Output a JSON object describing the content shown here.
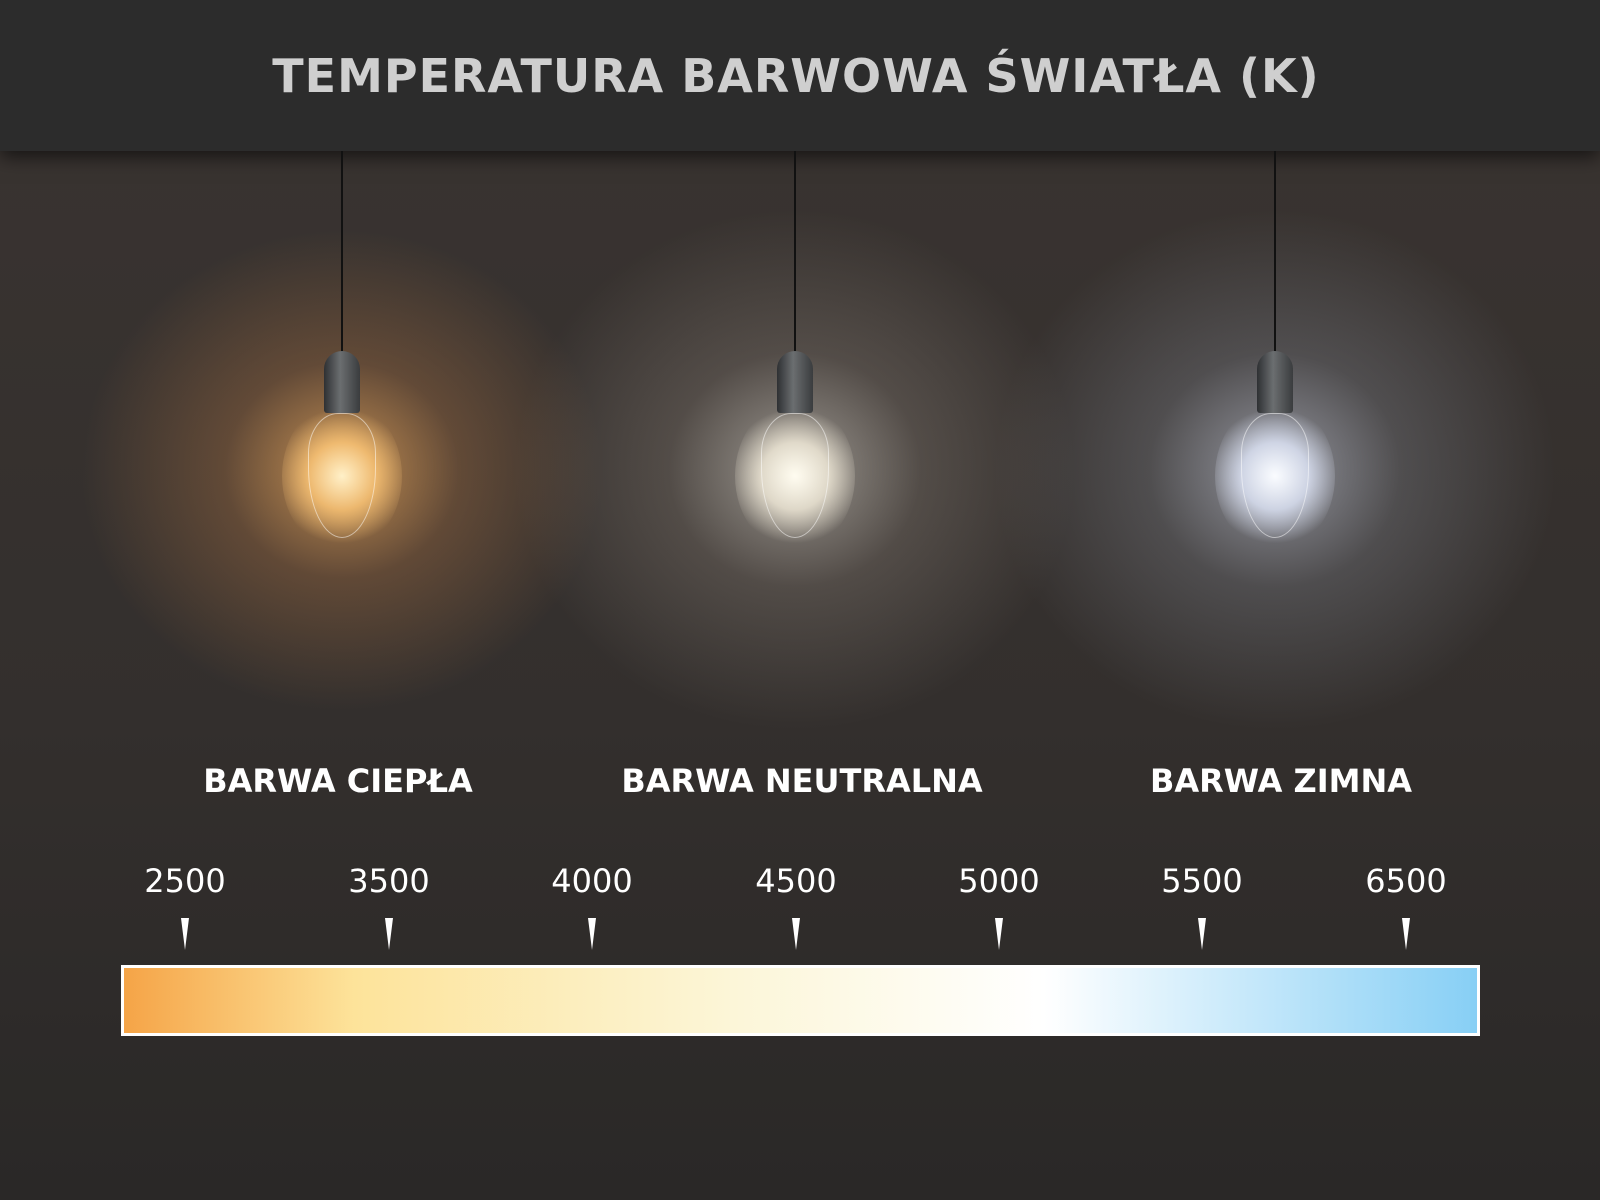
{
  "title": "TEMPERATURA BARWOWA ŚWIATŁA (K)",
  "categories": [
    {
      "label": "BARWA CIEPŁA",
      "bulb_color": "#ffd9a0"
    },
    {
      "label": "BARWA NEUTRALNA",
      "bulb_color": "#fff8ea"
    },
    {
      "label": "BARWA ZIMNA",
      "bulb_color": "#eef3ff"
    }
  ],
  "scale": {
    "ticks": [
      "2500",
      "3500",
      "4000",
      "4500",
      "5000",
      "5500",
      "6500"
    ],
    "gradient_colors": [
      "#f5a447",
      "#fde39a",
      "#fcf6d8",
      "#ffffff",
      "#87cff5"
    ]
  }
}
